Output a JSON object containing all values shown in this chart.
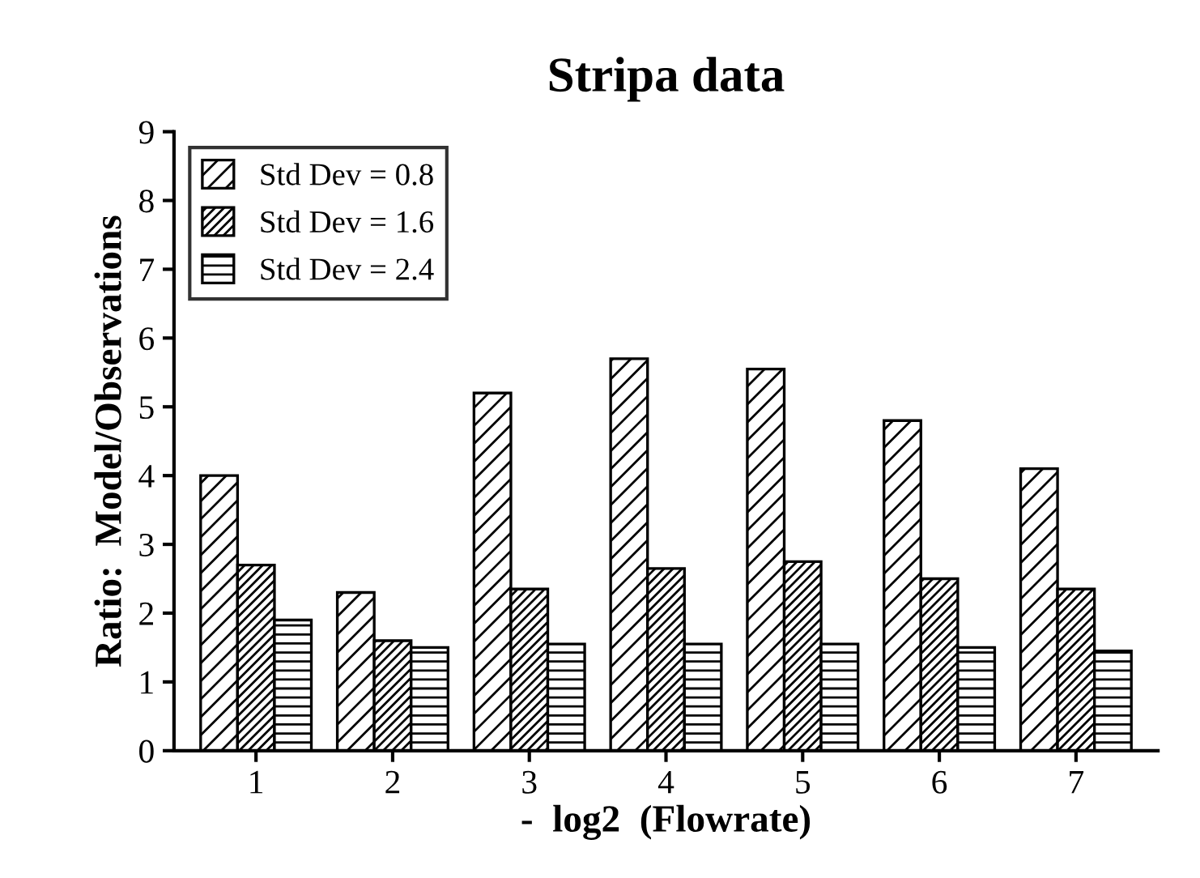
{
  "chart_data": {
    "type": "bar",
    "title": "Stripa data",
    "xlabel": "-  log2  (Flowrate)",
    "ylabel": "Ratio:  Model/Observations",
    "categories": [
      "1",
      "2",
      "3",
      "4",
      "5",
      "6",
      "7"
    ],
    "series": [
      {
        "name": "Std Dev = 0.8",
        "color": "#000000",
        "values": [
          4.0,
          2.3,
          5.2,
          5.7,
          5.55,
          4.8,
          4.1
        ]
      },
      {
        "name": "Std Dev = 1.6",
        "color": "#000000",
        "values": [
          2.7,
          1.6,
          2.35,
          2.65,
          2.75,
          2.5,
          2.35
        ]
      },
      {
        "name": "Std Dev = 2.4",
        "color": "#000000",
        "values": [
          1.9,
          1.5,
          1.55,
          1.55,
          1.55,
          1.5,
          1.45
        ]
      }
    ],
    "ylim": [
      0,
      9
    ],
    "yticks": [
      0,
      1,
      2,
      3,
      4,
      5,
      6,
      7,
      8,
      9
    ],
    "grid": false,
    "legend": "top left"
  }
}
